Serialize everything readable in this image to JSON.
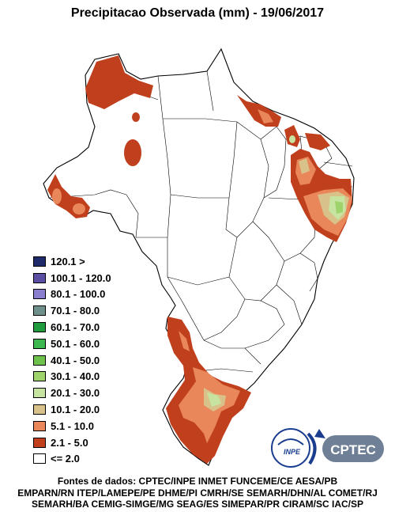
{
  "title": "Precipitacao Observada (mm) - 19/06/2017",
  "legend": [
    {
      "label": "120.1 >",
      "color": "#1f2a6b"
    },
    {
      "label": "100.1 - 120.0",
      "color": "#5a4fa3"
    },
    {
      "label": "80.1 - 100.0",
      "color": "#8a7fcf"
    },
    {
      "label": "70.1 - 80.0",
      "color": "#6f8f8a"
    },
    {
      "label": "60.1 - 70.0",
      "color": "#1f9a3c"
    },
    {
      "label": "50.1 - 60.0",
      "color": "#3cb84f"
    },
    {
      "label": "40.1 - 50.0",
      "color": "#6cc24a"
    },
    {
      "label": "30.1 - 40.0",
      "color": "#9fd36b"
    },
    {
      "label": "20.1 - 30.0",
      "color": "#c6e3a0"
    },
    {
      "label": "10.1 - 20.0",
      "color": "#d9c28a"
    },
    {
      "label": "5.1 - 10.0",
      "color": "#e9875a"
    },
    {
      "label": "2.1 - 5.0",
      "color": "#c0401e"
    },
    {
      "label": "<= 2.0",
      "color": "#ffffff"
    }
  ],
  "logos": {
    "inpe": "INPE",
    "cptec": "CPTEC"
  },
  "sources": [
    "Fontes de dados: CPTEC/INPE INMET FUNCEME/CE AESA/PB",
    "EMPARN/RN ITEP/LAMEPE/PE DHME/PI CMRH/SE SEMARH/DHN/AL COMET/RJ",
    "SEMARH/BA CEMIG-SIMGE/MG SEAG/ES SIMEPAR/PR CIRAM/SC IAC/SP"
  ]
}
